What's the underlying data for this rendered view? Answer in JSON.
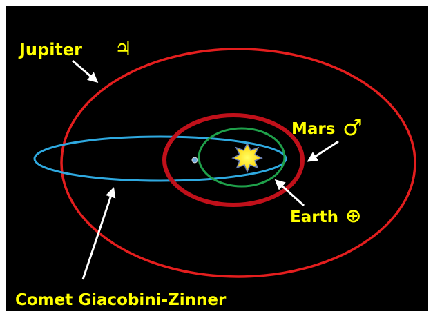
{
  "labels": {
    "jupiter": {
      "name": "Jupiter",
      "symbol": "♃"
    },
    "mars": {
      "name": "Mars",
      "symbol": "♂"
    },
    "earth": {
      "name": "Earth",
      "symbol": "⊕"
    },
    "comet": {
      "name": "Comet Giacobini-Zinner"
    }
  }
}
